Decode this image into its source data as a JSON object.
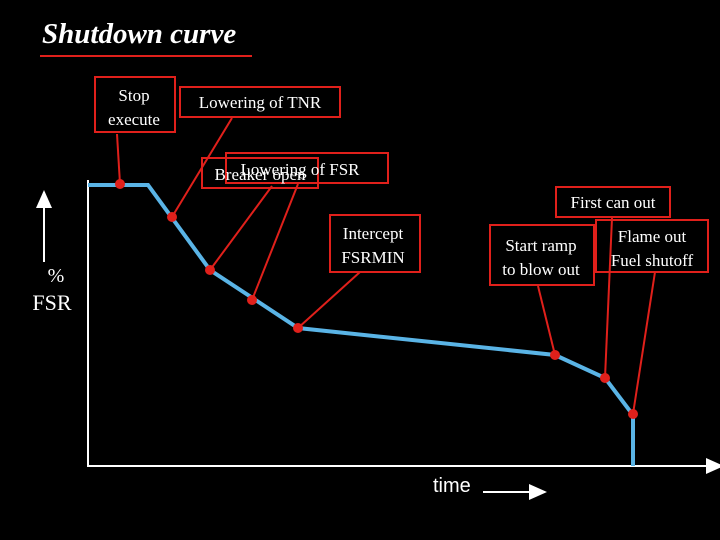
{
  "title": "Shutdown curve",
  "axes": {
    "y_label": [
      "%",
      "FSR"
    ],
    "x_label": "time"
  },
  "callouts": {
    "stop_execute": [
      "Stop",
      "execute"
    ],
    "lowering_tnr": "Lowering of TNR",
    "lowering_fsr": "Lowering of FSR",
    "breaker_open": "Breaker open",
    "first_can_out": "First can out",
    "intercept": [
      "Intercept",
      "FSRMIN"
    ],
    "start_ramp": [
      "Start ramp",
      "to blow out"
    ],
    "flame_out": [
      "Flame out",
      "Fuel shutoff"
    ]
  }
}
